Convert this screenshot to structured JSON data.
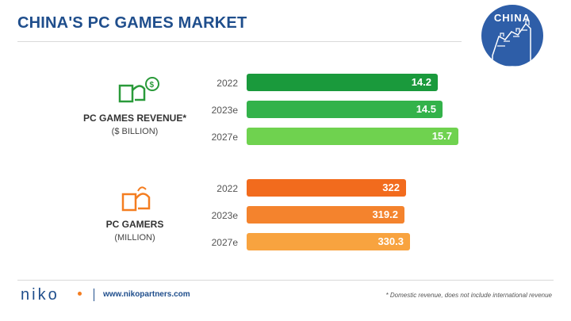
{
  "title": "CHINA'S PC GAMES MARKET",
  "badge": "CHINA",
  "colors": {
    "revenue": [
      "#1a9a3c",
      "#33b24a",
      "#6fd24f"
    ],
    "gamers": [
      "#f26b1d",
      "#f4832d",
      "#f8a33f"
    ]
  },
  "icons": {
    "revenue": "money-hand-icon",
    "gamers": "gamer-hand-icon"
  },
  "chart_data": [
    {
      "type": "bar",
      "title": "PC GAMES REVENUE*",
      "subtitle": "($ BILLION)",
      "categories": [
        "2022",
        "2023e",
        "2027e"
      ],
      "values": [
        14.2,
        14.5,
        15.7
      ],
      "labels": [
        "14.2",
        "14.5",
        "15.7"
      ]
    },
    {
      "type": "bar",
      "title": "PC GAMERS",
      "subtitle": "(MILLION)",
      "categories": [
        "2022",
        "2023e",
        "2027e"
      ],
      "values": [
        322,
        319.2,
        330.3
      ],
      "labels": [
        "322",
        "319.2",
        "330.3"
      ]
    }
  ],
  "footer": {
    "logo": "niko",
    "url": "www.nikopartners.com",
    "note": "* Domestic revenue, does not include international revenue"
  }
}
